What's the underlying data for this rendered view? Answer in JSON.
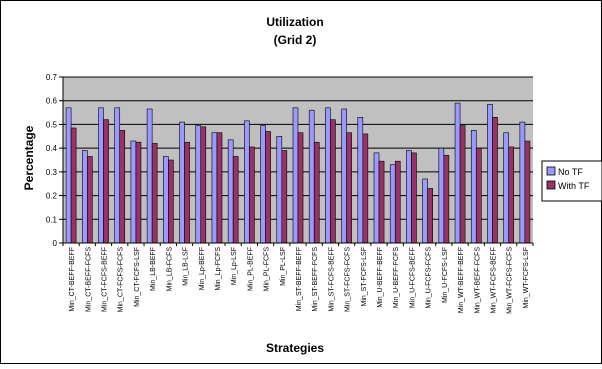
{
  "chart_data": {
    "type": "bar",
    "title": "Utilization",
    "subtitle": "(Grid 2)",
    "xlabel": "Strategies",
    "ylabel": "Percentage",
    "ylim": [
      0,
      0.7
    ],
    "yticks": [
      "0",
      "0.1",
      "0.2",
      "0.3",
      "0.4",
      "0.5",
      "0.6",
      "0.7"
    ],
    "grid": true,
    "legend_position": "right",
    "plot_background": "#c0c0c0",
    "categories": [
      "Min_CT-BEFF-BEFF",
      "Min_CT-BEFF-FCFS",
      "Min_CT-FCFS-BEFF",
      "Min_CT-FCFS-FCFS",
      "Min_CT-FCFS-LSF",
      "Min_LB-BEFF",
      "Min_LB-FCFS",
      "Min_LB-LSF",
      "Min_Lp-BEFF",
      "Min_Lp-FCFS",
      "Min_Lp-LSF",
      "Min_PL-BEFF",
      "Min_PL-FCFS",
      "Min_PL-LSF",
      "Min_ST-BEFF-BEFF",
      "Min_ST-BEFF-FCFS",
      "Min_ST-FCFS-BEFF",
      "Min_ST-FCFS-FCFS",
      "Min_ST-FCFS-LSF",
      "Min_U-BEFF-BEFF",
      "Min_U-BEFF-FCFS",
      "Min_U-FCFS-BEFF",
      "Min_U-FCFS-FCFS",
      "Min_U-FCFS-LSF",
      "Min_WT-BEFF-BEFF",
      "Min_WT-BEFF-FCFS",
      "Min_WT-FCFS-BEFF",
      "Min_WT-FCFS-FCFS",
      "Min_WT-FCFS-LSF"
    ],
    "series": [
      {
        "name": "No TF",
        "color": "#9999ff",
        "values": [
          0.57,
          0.39,
          0.57,
          0.57,
          0.43,
          0.565,
          0.365,
          0.51,
          0.495,
          0.465,
          0.435,
          0.515,
          0.495,
          0.45,
          0.57,
          0.56,
          0.57,
          0.565,
          0.53,
          0.38,
          0.33,
          0.39,
          0.27,
          0.4,
          0.59,
          0.475,
          0.585,
          0.465,
          0.51
        ]
      },
      {
        "name": "With TF",
        "color": "#993366",
        "values": [
          0.485,
          0.365,
          0.52,
          0.475,
          0.425,
          0.42,
          0.35,
          0.425,
          0.49,
          0.465,
          0.365,
          0.405,
          0.47,
          0.39,
          0.465,
          0.425,
          0.52,
          0.465,
          0.46,
          0.345,
          0.345,
          0.38,
          0.23,
          0.37,
          0.495,
          0.4,
          0.53,
          0.405,
          0.43
        ]
      }
    ]
  }
}
